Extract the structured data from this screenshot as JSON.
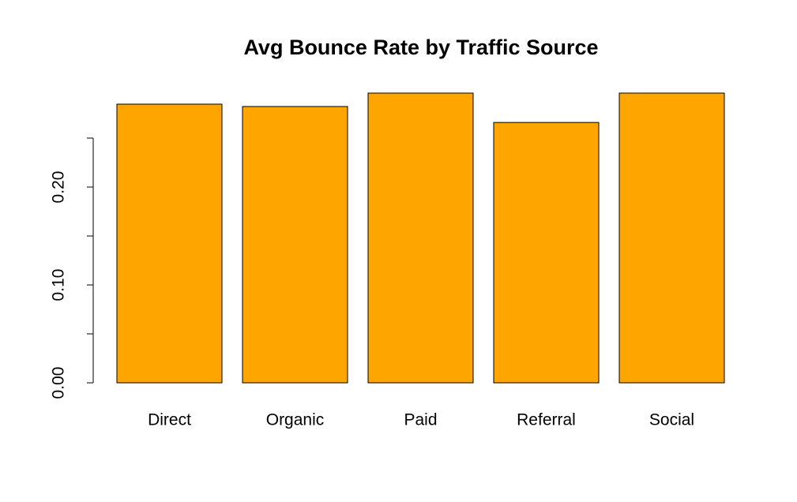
{
  "chart_data": {
    "type": "bar",
    "title": "Avg Bounce Rate by Traffic Source",
    "categories": [
      "Direct",
      "Organic",
      "Paid",
      "Referral",
      "Social"
    ],
    "values": [
      0.2847,
      0.2823,
      0.296,
      0.266,
      0.296
    ],
    "color": "#ffa500",
    "edge_color": "#000000",
    "ylim": [
      0,
      0.3
    ],
    "yticks": [
      {
        "value": 0,
        "label": "0.00"
      },
      {
        "value": 0.1,
        "label": "0.10"
      },
      {
        "value": 0.2,
        "label": "0.20"
      }
    ],
    "yminor_ticks": [
      0.05,
      0.15,
      0.25
    ],
    "grid": false
  }
}
